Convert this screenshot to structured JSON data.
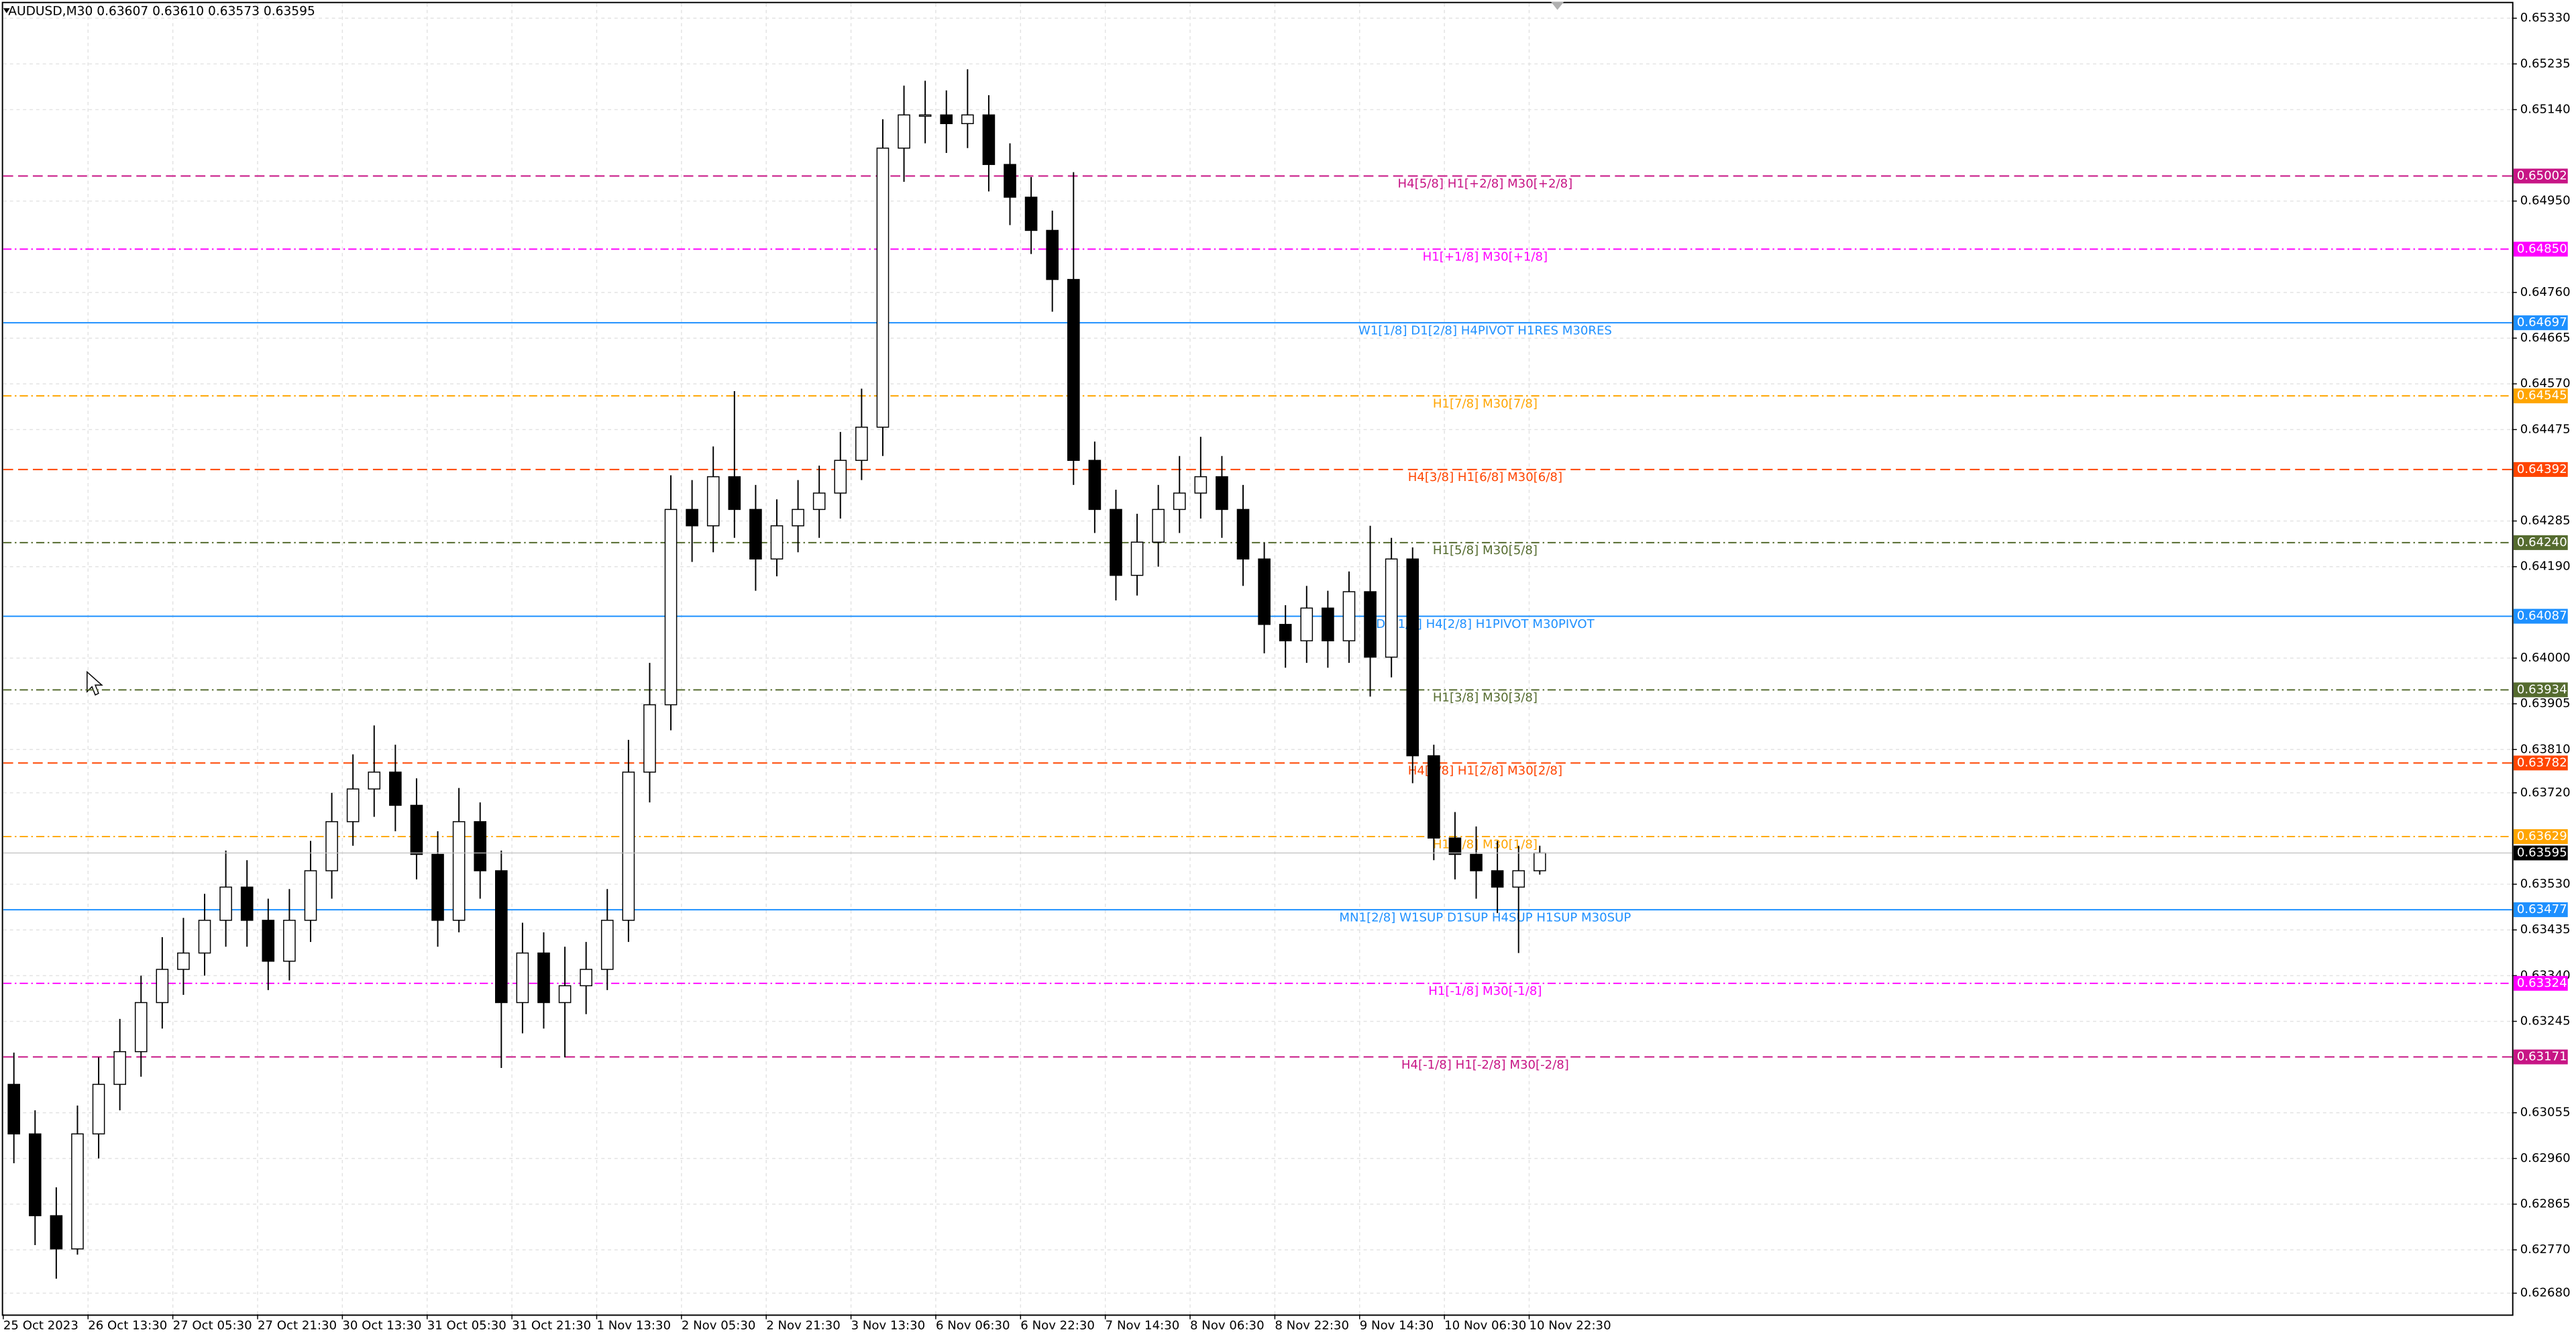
{
  "chart_data": {
    "type": "candlestick",
    "title": "AUDUSD,M30  0.63607 0.63610 0.63573 0.63595",
    "categories": [
      "25 Oct 2023",
      null,
      null,
      null,
      "26 Oct 13:30",
      null,
      null,
      null,
      "27 Oct 05:30",
      null,
      null,
      null,
      "27 Oct 21:30",
      null,
      null,
      null,
      "30 Oct 13:30",
      null,
      null,
      null,
      "31 Oct 05:30",
      null,
      null,
      null,
      "31 Oct 21:30",
      null,
      null,
      null,
      "1 Nov 13:30",
      null,
      null,
      null,
      "2 Nov 05:30",
      null,
      null,
      null,
      "2 Nov 21:30",
      null,
      null,
      null,
      "3 Nov 13:30",
      null,
      null,
      null,
      "6 Nov 06:30",
      null,
      null,
      null,
      "6 Nov 22:30",
      null,
      null,
      null,
      "7 Nov 14:30",
      null,
      null,
      null,
      "8 Nov 06:30",
      null,
      null,
      null,
      "8 Nov 22:30",
      null,
      null,
      null,
      "9 Nov 14:30",
      null,
      null,
      null,
      "10 Nov 06:30",
      null,
      null,
      null,
      "10 Nov 22:30"
    ],
    "open": [
      0.63114,
      0.63011,
      0.62841,
      0.62772,
      0.63011,
      0.63114,
      0.63182,
      0.63284,
      0.63353,
      0.63387,
      0.63455,
      0.63524,
      0.63455,
      0.6337,
      0.63455,
      0.63558,
      0.6366,
      0.63728,
      0.63763,
      0.63694,
      0.63592,
      0.63455,
      0.6366,
      0.63558,
      0.63284,
      0.63387,
      0.63284,
      0.63319,
      0.63353,
      0.63455,
      0.63763,
      0.63903,
      0.64309,
      0.64275,
      0.64377,
      0.64309,
      0.64206,
      0.64275,
      0.64309,
      0.64343,
      0.64411,
      0.6448,
      0.6506,
      0.65129,
      0.65129,
      0.65111,
      0.65129,
      0.65026,
      0.64958,
      0.64889,
      0.64787,
      0.64411,
      0.64309,
      0.64172,
      0.64241,
      0.64309,
      0.64343,
      0.64377,
      0.64309,
      0.64206,
      0.6407,
      0.64036,
      0.64104,
      0.64036,
      0.64138,
      0.64002,
      0.64206,
      0.63797,
      0.63626,
      0.63592,
      0.63558,
      0.63524,
      0.63558
    ],
    "high": [
      0.6318,
      0.6306,
      0.629,
      0.6307,
      0.6317,
      0.6325,
      0.6334,
      0.6342,
      0.6346,
      0.6351,
      0.636,
      0.6358,
      0.635,
      0.6352,
      0.6362,
      0.6372,
      0.638,
      0.6386,
      0.6382,
      0.6375,
      0.6364,
      0.6373,
      0.637,
      0.636,
      0.6345,
      0.6343,
      0.634,
      0.6341,
      0.6352,
      0.6383,
      0.6399,
      0.6438,
      0.6437,
      0.6444,
      0.64555,
      0.6436,
      0.6433,
      0.6437,
      0.644,
      0.6447,
      0.6456,
      0.6512,
      0.6519,
      0.652,
      0.6518,
      0.65224,
      0.6517,
      0.6507,
      0.65,
      0.6493,
      0.6501,
      0.6445,
      0.6435,
      0.643,
      0.6436,
      0.6442,
      0.6446,
      0.6442,
      0.6436,
      0.6424,
      0.6411,
      0.6415,
      0.6414,
      0.6418,
      0.64275,
      0.6425,
      0.6423,
      0.6382,
      0.6368,
      0.6365,
      0.6362,
      0.6361,
      0.6361
    ],
    "low": [
      0.6295,
      0.6278,
      0.6271,
      0.6276,
      0.6296,
      0.6306,
      0.6313,
      0.6323,
      0.633,
      0.6334,
      0.634,
      0.634,
      0.6331,
      0.6333,
      0.6341,
      0.635,
      0.6361,
      0.6367,
      0.6364,
      0.6354,
      0.634,
      0.6343,
      0.635,
      0.63148,
      0.6322,
      0.6323,
      0.6317,
      0.6326,
      0.6331,
      0.6341,
      0.637,
      0.6385,
      0.642,
      0.6422,
      0.6425,
      0.6414,
      0.6417,
      0.6422,
      0.6425,
      0.6429,
      0.6437,
      0.6442,
      0.6499,
      0.6507,
      0.6505,
      0.6506,
      0.6497,
      0.649,
      0.6484,
      0.6472,
      0.6436,
      0.6426,
      0.6412,
      0.6413,
      0.6419,
      0.6426,
      0.6429,
      0.6425,
      0.6415,
      0.6401,
      0.6398,
      0.6399,
      0.6398,
      0.6399,
      0.6392,
      0.6396,
      0.6374,
      0.6358,
      0.6354,
      0.635,
      0.6347,
      0.63387,
      0.6355
    ],
    "close": [
      0.63011,
      0.62841,
      0.62772,
      0.63011,
      0.63114,
      0.63182,
      0.63284,
      0.63353,
      0.63387,
      0.63455,
      0.63524,
      0.63455,
      0.6337,
      0.63455,
      0.63558,
      0.6366,
      0.63728,
      0.63763,
      0.63694,
      0.63592,
      0.63455,
      0.6366,
      0.63558,
      0.63284,
      0.63387,
      0.63284,
      0.63319,
      0.63353,
      0.63455,
      0.63763,
      0.63903,
      0.64309,
      0.64275,
      0.64377,
      0.64309,
      0.64206,
      0.64275,
      0.64309,
      0.64343,
      0.64411,
      0.6448,
      0.6506,
      0.65129,
      0.65129,
      0.65111,
      0.65129,
      0.65026,
      0.64958,
      0.64889,
      0.64787,
      0.64411,
      0.64309,
      0.64172,
      0.64241,
      0.64309,
      0.64343,
      0.64377,
      0.64309,
      0.64206,
      0.6407,
      0.64036,
      0.64104,
      0.64036,
      0.64138,
      0.64002,
      0.64206,
      0.63797,
      0.63626,
      0.63592,
      0.63558,
      0.63524,
      0.63558,
      0.63595
    ],
    "up_color": "#ffffff",
    "down_color": "#000000",
    "ylim": [
      0.62636,
      0.65361
    ],
    "yticks": [
      {
        "value": 0.6533,
        "label": "0.65330"
      },
      {
        "value": 0.65235,
        "label": "0.65235"
      },
      {
        "value": 0.6514,
        "label": "0.65140"
      },
      {
        "value": 0.6495,
        "label": "0.64950"
      },
      {
        "value": 0.6476,
        "label": "0.64760"
      },
      {
        "value": 0.64665,
        "label": "0.64665"
      },
      {
        "value": 0.6457,
        "label": "0.64570"
      },
      {
        "value": 0.64475,
        "label": "0.64475"
      },
      {
        "value": 0.64285,
        "label": "0.64285"
      },
      {
        "value": 0.6419,
        "label": "0.64190"
      },
      {
        "value": 0.64,
        "label": "0.64000"
      },
      {
        "value": 0.63905,
        "label": "0.63905"
      },
      {
        "value": 0.6381,
        "label": "0.63810"
      },
      {
        "value": 0.6372,
        "label": "0.63720"
      },
      {
        "value": 0.6353,
        "label": "0.63530"
      },
      {
        "value": 0.63435,
        "label": "0.63435"
      },
      {
        "value": 0.6334,
        "label": "0.63340"
      },
      {
        "value": 0.63245,
        "label": "0.63245"
      },
      {
        "value": 0.63055,
        "label": "0.63055"
      },
      {
        "value": 0.6296,
        "label": "0.62960"
      },
      {
        "value": 0.62865,
        "label": "0.62865"
      },
      {
        "value": 0.6277,
        "label": "0.62770"
      },
      {
        "value": 0.6268,
        "label": "0.62680"
      }
    ],
    "grid": true,
    "levels": [
      {
        "name": "H4[5/8] H1[+2/8] M30[+2/8]",
        "value": 0.65002,
        "value_label": "0.65002",
        "color": "#c71585",
        "style": "dash"
      },
      {
        "name": "H1[+1/8] M30[+1/8]",
        "value": 0.6485,
        "value_label": "0.64850",
        "color": "#ff00ff",
        "style": "dashdot"
      },
      {
        "name": "W1[1/8] D1[2/8] H4PIVOT H1RES M30RES",
        "value": 0.64697,
        "value_label": "0.64697",
        "color": "#1e90ff",
        "style": "solid"
      },
      {
        "name": "H1[7/8] M30[7/8]",
        "value": 0.64545,
        "value_label": "0.64545",
        "color": "#ffa500",
        "style": "dashdot"
      },
      {
        "name": "H4[3/8] H1[6/8] M30[6/8]",
        "value": 0.64392,
        "value_label": "0.64392",
        "color": "#ff4500",
        "style": "dash"
      },
      {
        "name": "H1[5/8] M30[5/8]",
        "value": 0.6424,
        "value_label": "0.64240",
        "color": "#556b2f",
        "style": "dashdot"
      },
      {
        "name": "D1[1/8] H4[2/8] H1PIVOT M30PIVOT",
        "value": 0.64087,
        "value_label": "0.64087",
        "color": "#1e90ff",
        "style": "solid"
      },
      {
        "name": "H1[3/8] M30[3/8]",
        "value": 0.63934,
        "value_label": "0.63934",
        "color": "#556b2f",
        "style": "dashdot"
      },
      {
        "name": "H4[1/8] H1[2/8] M30[2/8]",
        "value": 0.63782,
        "value_label": "0.63782",
        "color": "#ff4500",
        "style": "dash"
      },
      {
        "name": "H1[1/8] M30[1/8]",
        "value": 0.63629,
        "value_label": "0.63629",
        "color": "#ffa500",
        "style": "dashdot"
      },
      {
        "name": "MN1[2/8] W1SUP D1SUP H4SUP H1SUP M30SUP",
        "value": 0.63477,
        "value_label": "0.63477",
        "color": "#1e90ff",
        "style": "solid"
      },
      {
        "name": "H1[-1/8] M30[-1/8]",
        "value": 0.63324,
        "value_label": "0.63324",
        "color": "#ff00ff",
        "style": "dashdot"
      },
      {
        "name": "H4[-1/8] H1[-2/8] M30[-2/8]",
        "value": 0.63171,
        "value_label": "0.63171",
        "color": "#c71585",
        "style": "dash"
      }
    ],
    "last_price": 0.63595
  }
}
